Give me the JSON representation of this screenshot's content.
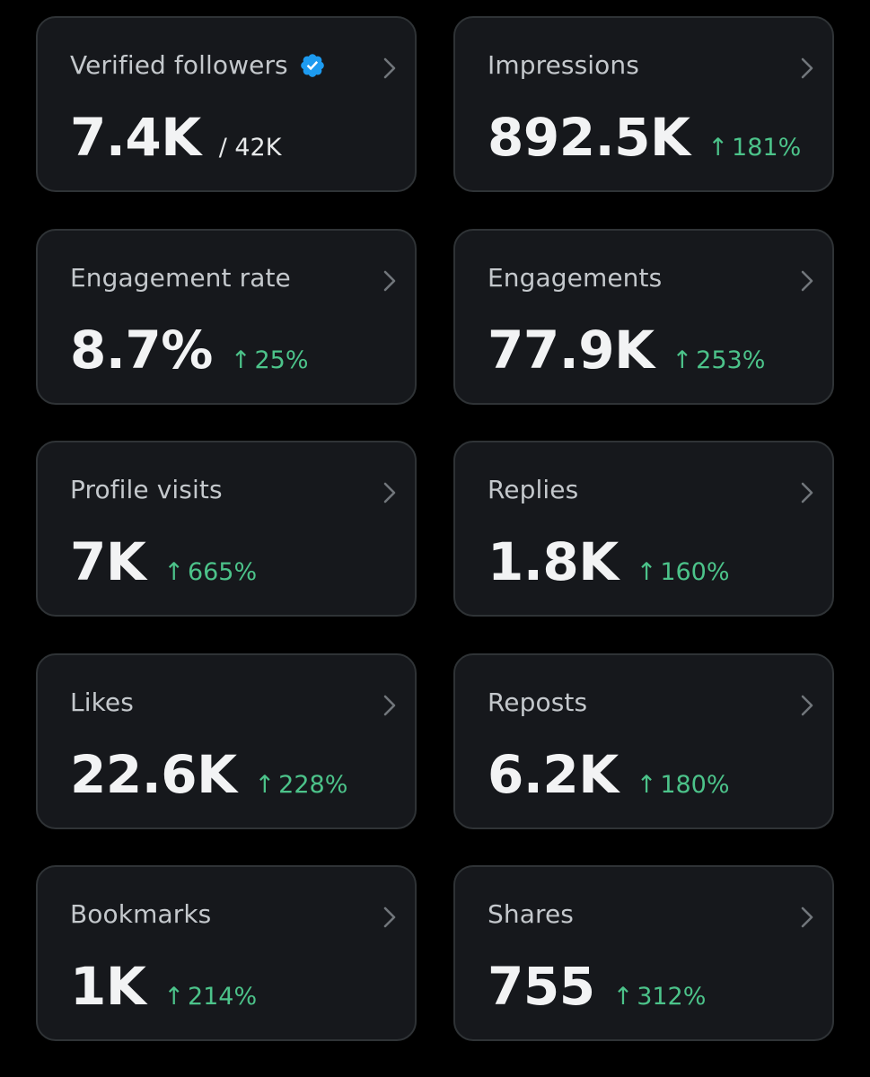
{
  "accent_color": "#1d9bf0",
  "positive_color": "#4cc38a",
  "cards": [
    {
      "label": "Verified followers",
      "value": "7.4K",
      "denominator": "/ 42K",
      "verified_icon": "verified-badge-icon"
    },
    {
      "label": "Impressions",
      "value": "892.5K",
      "delta_arrow": "↑",
      "delta": "181%"
    },
    {
      "label": "Engagement rate",
      "value": "8.7%",
      "delta_arrow": "↑",
      "delta": "25%"
    },
    {
      "label": "Engagements",
      "value": "77.9K",
      "delta_arrow": "↑",
      "delta": "253%"
    },
    {
      "label": "Profile visits",
      "value": "7K",
      "delta_arrow": "↑",
      "delta": "665%"
    },
    {
      "label": "Replies",
      "value": "1.8K",
      "delta_arrow": "↑",
      "delta": "160%"
    },
    {
      "label": "Likes",
      "value": "22.6K",
      "delta_arrow": "↑",
      "delta": "228%"
    },
    {
      "label": "Reposts",
      "value": "6.2K",
      "delta_arrow": "↑",
      "delta": "180%"
    },
    {
      "label": "Bookmarks",
      "value": "1K",
      "delta_arrow": "↑",
      "delta": "214%"
    },
    {
      "label": "Shares",
      "value": "755",
      "delta_arrow": "↑",
      "delta": "312%"
    }
  ]
}
